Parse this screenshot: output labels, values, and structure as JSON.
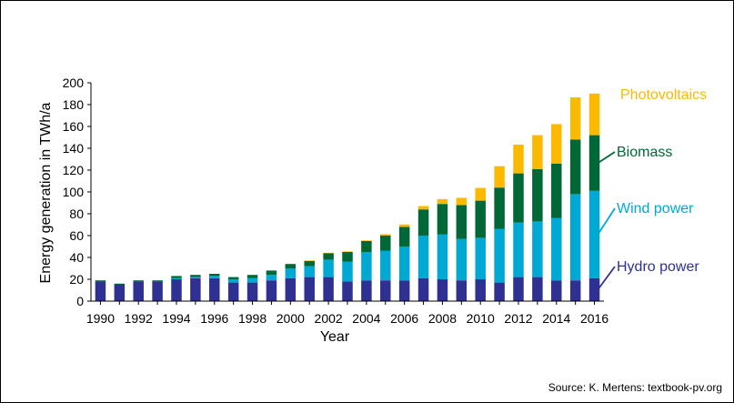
{
  "chart_data": {
    "type": "bar",
    "stacked": true,
    "xlabel": "Year",
    "ylabel": "Energy generation in TWh/a",
    "ylim": [
      0,
      200
    ],
    "yticks": [
      "0",
      "20",
      "40",
      "60",
      "80",
      "100",
      "120",
      "140",
      "160",
      "180",
      "200"
    ],
    "xtick_labels": [
      "1990",
      "1992",
      "1994",
      "1996",
      "1998",
      "2000",
      "2002",
      "2004",
      "2006",
      "2008",
      "2010",
      "2012",
      "2014",
      "2016"
    ],
    "categories": [
      "1990",
      "1991",
      "1992",
      "1993",
      "1994",
      "1995",
      "1996",
      "1997",
      "1998",
      "1999",
      "2000",
      "2001",
      "2002",
      "2003",
      "2004",
      "2005",
      "2006",
      "2007",
      "2008",
      "2009",
      "2010",
      "2011",
      "2012",
      "2013",
      "2014",
      "2015",
      "2016"
    ],
    "grid": false,
    "legend": "inline-right",
    "series": [
      {
        "name": "Hydro power",
        "color": "#2e3192",
        "values": [
          18,
          15,
          18,
          18,
          20,
          21,
          21,
          17,
          17,
          19,
          21,
          22,
          22,
          18,
          19,
          19,
          19,
          21,
          20,
          19,
          20,
          17,
          22,
          22,
          19,
          19,
          21
        ]
      },
      {
        "name": "Wind power",
        "color": "#00a9d4",
        "values": [
          0,
          0,
          0,
          0,
          1,
          1,
          2,
          3,
          4,
          5,
          9,
          10,
          16,
          18,
          26,
          27,
          31,
          39,
          41,
          38,
          38,
          49,
          50,
          51,
          57,
          79,
          80
        ]
      },
      {
        "name": "Biomass",
        "color": "#006837",
        "values": [
          1,
          1,
          1,
          1,
          2,
          2,
          2,
          2,
          3,
          4,
          4,
          5,
          6,
          9,
          10,
          14,
          18,
          24,
          28,
          31,
          34,
          38,
          45,
          48,
          50,
          50,
          51
        ]
      },
      {
        "name": "Photovoltaics",
        "color": "#fbb900",
        "values": [
          0,
          0,
          0,
          0,
          0,
          0,
          0,
          0,
          0,
          0,
          0,
          0.2,
          0.3,
          0.5,
          0.6,
          1.3,
          2.2,
          3.1,
          4.4,
          6.6,
          11.7,
          19.6,
          26.4,
          31.0,
          36.1,
          38.7,
          38.1
        ]
      }
    ]
  },
  "source_text": "Source: K. Mertens: textbook-pv.org"
}
